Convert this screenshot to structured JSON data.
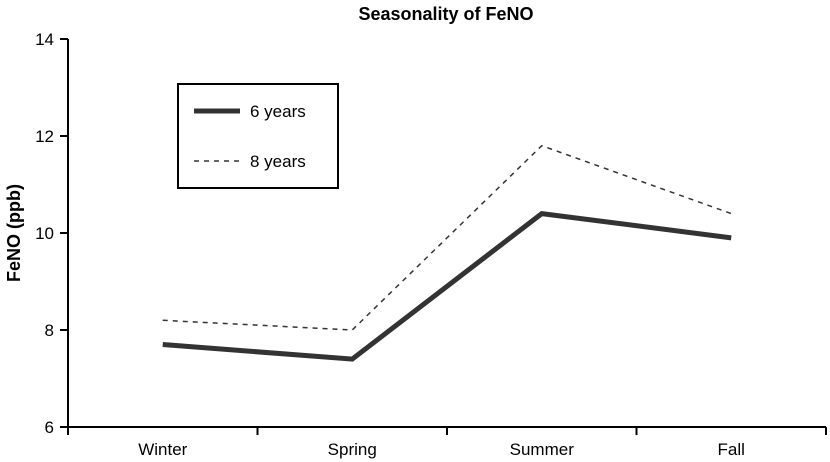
{
  "chart_data": {
    "type": "line",
    "title": "Seasonality of FeNO",
    "xlabel": "",
    "ylabel": "FeNO (ppb)",
    "categories": [
      "Winter",
      "Spring",
      "Summer",
      "Fall"
    ],
    "ylim": [
      6,
      14
    ],
    "yticks": [
      6,
      8,
      10,
      12,
      14
    ],
    "grid": false,
    "legend_position": "top-left",
    "series": [
      {
        "name": "6 years",
        "style": "solid",
        "color": "#333333",
        "values": [
          7.7,
          7.4,
          10.4,
          9.9
        ]
      },
      {
        "name": "8 years",
        "style": "dashed",
        "color": "#333333",
        "values": [
          8.2,
          8.0,
          11.8,
          10.4
        ]
      }
    ]
  }
}
